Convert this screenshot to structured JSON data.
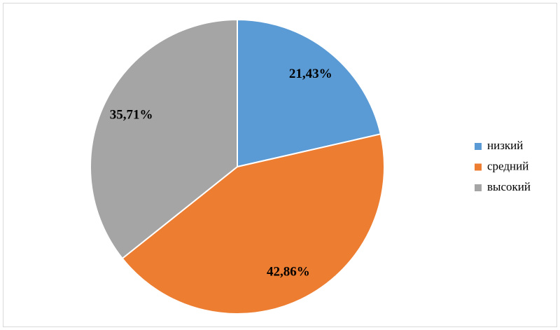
{
  "chart_data": {
    "type": "pie",
    "categories": [
      "низкий",
      "средний",
      "высокий"
    ],
    "values": [
      21.43,
      42.86,
      35.71
    ],
    "value_labels": [
      "21,43%",
      "42,86%",
      "35,71%"
    ],
    "colors": [
      "#5b9bd5",
      "#ed7d31",
      "#a5a5a5"
    ],
    "legend": "right"
  }
}
